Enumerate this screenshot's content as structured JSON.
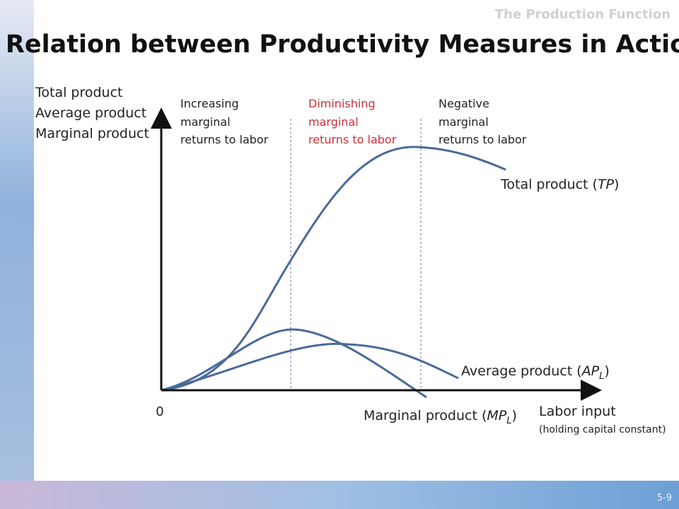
{
  "header": {
    "subtitle": "The Production Function",
    "title": "Relation between Productivity Measures in Action"
  },
  "y_axis_labels": [
    "Total product",
    "Average product",
    "Marginal product"
  ],
  "regions": [
    {
      "lines": [
        "Increasing",
        "marginal",
        "returns to labor"
      ]
    },
    {
      "lines": [
        "Diminishing",
        "marginal",
        "returns to labor"
      ]
    },
    {
      "lines": [
        "Negative",
        "marginal",
        "returns to labor"
      ]
    }
  ],
  "curve_labels": {
    "total": {
      "text": "Total product (",
      "abbr": "TP",
      "close": ")"
    },
    "average": {
      "text": "Average product (",
      "abbr": "AP",
      "sub": "L",
      "close": ")"
    },
    "marginal": {
      "text": "Marginal product (",
      "abbr": "MP",
      "sub": "L",
      "close": ")"
    }
  },
  "origin": "0",
  "x_axis": {
    "label": "Labor input",
    "note": "(holding capital constant)"
  },
  "slide_number": "5-9"
}
